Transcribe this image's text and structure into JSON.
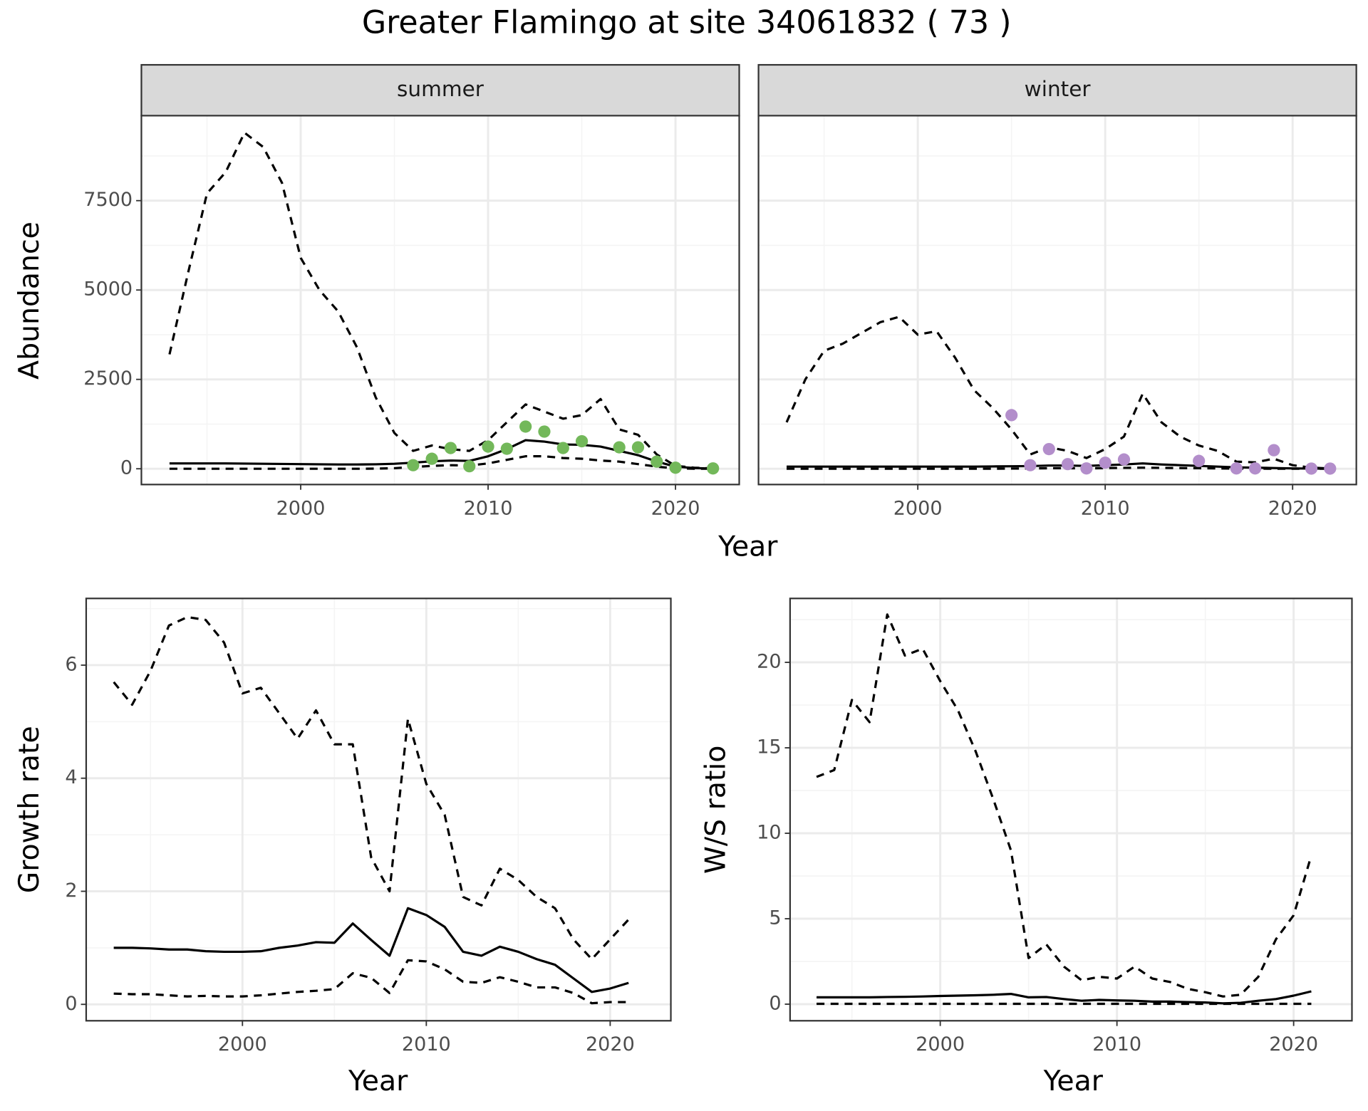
{
  "title": "Greater Flamingo at site 34061832 ( 73 )",
  "chart_data": [
    {
      "type": "line",
      "facet": "summer",
      "y_label": "Abundance",
      "x_label": "Year",
      "x": [
        1993,
        1994,
        1995,
        1996,
        1997,
        1998,
        1999,
        2000,
        2001,
        2002,
        2003,
        2004,
        2005,
        2006,
        2007,
        2008,
        2009,
        2010,
        2011,
        2012,
        2013,
        2014,
        2015,
        2016,
        2017,
        2018,
        2019,
        2020,
        2021,
        2022
      ],
      "xlim": [
        1991.5,
        2023.4
      ],
      "xticks": [
        2000,
        2010,
        2020
      ],
      "ylim": [
        -441,
        9877
      ],
      "yticks": [
        0,
        2500,
        5000,
        7500
      ],
      "grid": true,
      "series": [
        {
          "color": "#000000",
          "linetype": "dashed",
          "values": [
            3200,
            5500,
            7700,
            8300,
            9400,
            9000,
            8000,
            5900,
            5000,
            4400,
            3400,
            2000,
            1000,
            500,
            650,
            550,
            500,
            800,
            1300,
            1800,
            1600,
            1400,
            1500,
            1950,
            1100,
            950,
            400,
            80,
            30,
            10
          ]
        },
        {
          "color": "#000000",
          "linetype": "solid",
          "values": [
            150,
            150,
            150,
            150,
            145,
            140,
            135,
            130,
            125,
            120,
            120,
            125,
            140,
            170,
            210,
            230,
            220,
            350,
            550,
            800,
            760,
            680,
            670,
            620,
            500,
            380,
            200,
            60,
            20,
            5
          ]
        },
        {
          "color": "#000000",
          "linetype": "dashed",
          "values": [
            0,
            0,
            0,
            0,
            0,
            0,
            0,
            0,
            0,
            0,
            0,
            5,
            15,
            50,
            80,
            100,
            90,
            150,
            250,
            350,
            350,
            300,
            280,
            230,
            200,
            130,
            60,
            10,
            2,
            0
          ]
        },
        {
          "color": "#73b85a",
          "linetype": "points",
          "x": [
            2006,
            2007,
            2008,
            2009,
            2010,
            2011,
            2012,
            2013,
            2014,
            2015,
            2017,
            2018,
            2019,
            2020,
            2022
          ],
          "values": [
            100,
            280,
            580,
            70,
            620,
            560,
            1180,
            1040,
            580,
            770,
            600,
            600,
            200,
            30,
            10
          ]
        }
      ]
    },
    {
      "type": "line",
      "facet": "winter",
      "x": [
        1993,
        1994,
        1995,
        1996,
        1997,
        1998,
        1999,
        2000,
        2001,
        2002,
        2003,
        2004,
        2005,
        2006,
        2007,
        2008,
        2009,
        2010,
        2011,
        2012,
        2013,
        2014,
        2015,
        2016,
        2017,
        2018,
        2019,
        2020,
        2021,
        2022
      ],
      "xlim": [
        1991.5,
        2023.4
      ],
      "xticks": [
        2000,
        2010,
        2020
      ],
      "ylim": [
        -441,
        9877
      ],
      "yticks": [
        0,
        2500,
        5000,
        7500
      ],
      "grid": true,
      "series": [
        {
          "color": "#000000",
          "linetype": "dashed",
          "values": [
            1300,
            2500,
            3300,
            3500,
            3800,
            4100,
            4250,
            3750,
            3850,
            3100,
            2200,
            1700,
            1100,
            400,
            600,
            500,
            300,
            550,
            900,
            2100,
            1300,
            900,
            650,
            500,
            200,
            180,
            280,
            100,
            30,
            10
          ]
        },
        {
          "color": "#000000",
          "linetype": "solid",
          "values": [
            60,
            60,
            60,
            60,
            60,
            60,
            60,
            60,
            60,
            60,
            60,
            65,
            70,
            75,
            90,
            90,
            80,
            100,
            120,
            150,
            120,
            100,
            80,
            60,
            40,
            30,
            20,
            10,
            5,
            3
          ]
        },
        {
          "color": "#000000",
          "linetype": "dashed",
          "values": [
            0,
            0,
            0,
            0,
            0,
            0,
            0,
            0,
            0,
            0,
            0,
            0,
            5,
            10,
            15,
            15,
            10,
            20,
            25,
            30,
            25,
            20,
            15,
            10,
            5,
            3,
            2,
            1,
            0,
            0
          ]
        },
        {
          "color": "#b38ecb",
          "linetype": "points",
          "x": [
            2005,
            2006,
            2007,
            2008,
            2009,
            2010,
            2011,
            2015,
            2017,
            2018,
            2019,
            2021,
            2022
          ],
          "values": [
            1500,
            100,
            550,
            130,
            10,
            170,
            260,
            220,
            10,
            10,
            520,
            5,
            5
          ]
        }
      ]
    },
    {
      "type": "line",
      "y_label": "Growth rate",
      "x_label": "Year",
      "x": [
        1993,
        1994,
        1995,
        1996,
        1997,
        1998,
        1999,
        2000,
        2001,
        2002,
        2003,
        2004,
        2005,
        2006,
        2007,
        2008,
        2009,
        2010,
        2011,
        2012,
        2013,
        2014,
        2015,
        2016,
        2017,
        2018,
        2019,
        2020,
        2021
      ],
      "xlim": [
        1991.5,
        2023.3
      ],
      "xticks": [
        2000,
        2010,
        2020
      ],
      "ylim": [
        -0.29,
        7.18
      ],
      "yticks": [
        0,
        2,
        4,
        6
      ],
      "grid": true,
      "series": [
        {
          "color": "#000000",
          "linetype": "dashed",
          "values": [
            5.7,
            5.3,
            5.9,
            6.7,
            6.85,
            6.8,
            6.4,
            5.5,
            5.6,
            5.15,
            4.7,
            5.2,
            4.6,
            4.6,
            2.6,
            2.0,
            5.05,
            3.9,
            3.35,
            1.9,
            1.75,
            2.4,
            2.2,
            1.9,
            1.7,
            1.15,
            0.8,
            1.15,
            1.5
          ]
        },
        {
          "color": "#000000",
          "linetype": "solid",
          "values": [
            1.0,
            1.0,
            0.99,
            0.97,
            0.97,
            0.94,
            0.93,
            0.93,
            0.94,
            1.0,
            1.04,
            1.1,
            1.09,
            1.43,
            1.14,
            0.86,
            1.7,
            1.58,
            1.37,
            0.93,
            0.86,
            1.02,
            0.93,
            0.8,
            0.7,
            0.46,
            0.22,
            0.28,
            0.38
          ]
        },
        {
          "color": "#000000",
          "linetype": "dashed",
          "values": [
            0.19,
            0.18,
            0.18,
            0.16,
            0.14,
            0.15,
            0.14,
            0.14,
            0.16,
            0.19,
            0.22,
            0.24,
            0.27,
            0.55,
            0.47,
            0.2,
            0.78,
            0.76,
            0.62,
            0.4,
            0.38,
            0.48,
            0.4,
            0.3,
            0.3,
            0.2,
            0.02,
            0.04,
            0.04
          ]
        }
      ]
    },
    {
      "type": "line",
      "y_label": "W/S ratio",
      "x_label": "Year",
      "x": [
        1993,
        1994,
        1995,
        1996,
        1997,
        1998,
        1999,
        2000,
        2001,
        2002,
        2003,
        2004,
        2005,
        2006,
        2007,
        2008,
        2009,
        2010,
        2011,
        2012,
        2013,
        2014,
        2015,
        2016,
        2017,
        2018,
        2019,
        2020,
        2021
      ],
      "xlim": [
        1991.5,
        2023.3
      ],
      "xticks": [
        2000,
        2010,
        2020
      ],
      "ylim": [
        -0.97,
        23.74
      ],
      "yticks": [
        0,
        5,
        10,
        15,
        20
      ],
      "grid": true,
      "series": [
        {
          "color": "#000000",
          "linetype": "dashed",
          "values": [
            13.3,
            13.7,
            17.8,
            16.5,
            22.8,
            20.4,
            20.8,
            18.9,
            17.2,
            14.8,
            12.0,
            9.0,
            2.7,
            3.5,
            2.2,
            1.4,
            1.6,
            1.5,
            2.2,
            1.5,
            1.3,
            0.9,
            0.7,
            0.45,
            0.55,
            1.6,
            3.8,
            5.2,
            8.7
          ]
        },
        {
          "color": "#000000",
          "linetype": "solid",
          "values": [
            0.4,
            0.4,
            0.4,
            0.4,
            0.42,
            0.43,
            0.45,
            0.48,
            0.5,
            0.52,
            0.55,
            0.6,
            0.4,
            0.42,
            0.3,
            0.2,
            0.25,
            0.22,
            0.2,
            0.15,
            0.15,
            0.12,
            0.1,
            0.05,
            0.08,
            0.2,
            0.3,
            0.5,
            0.75
          ]
        },
        {
          "color": "#000000",
          "linetype": "dashed",
          "values": [
            0.02,
            0.02,
            0.02,
            0.02,
            0.02,
            0.02,
            0.02,
            0.02,
            0.02,
            0.02,
            0.02,
            0.02,
            0.02,
            0.02,
            0.02,
            0.02,
            0.02,
            0.02,
            0.02,
            0.02,
            0.02,
            0.02,
            0.02,
            0.02,
            0.02,
            0.02,
            0.02,
            0.02,
            0.02
          ]
        }
      ]
    }
  ]
}
